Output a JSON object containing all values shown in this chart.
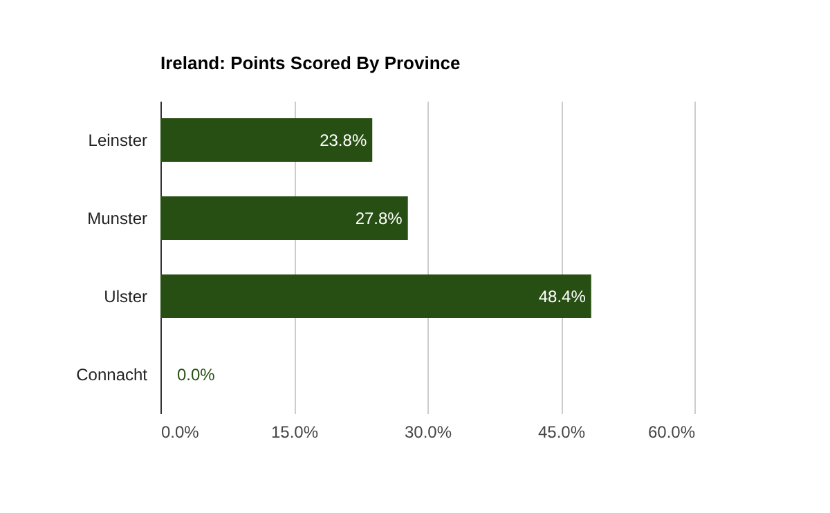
{
  "chart_data": {
    "type": "bar",
    "orientation": "horizontal",
    "title": "Ireland: Points Scored By Province",
    "categories": [
      "Leinster",
      "Munster",
      "Ulster",
      "Connacht"
    ],
    "values": [
      23.8,
      27.8,
      48.4,
      0.0
    ],
    "color": "#274e13",
    "value_labels": [
      "23.8%",
      "27.8%",
      "48.4%",
      "0.0%"
    ],
    "xlim": [
      0,
      60
    ],
    "xticks": [
      {
        "value": 0,
        "label": "0.0%"
      },
      {
        "value": 15,
        "label": "15.0%"
      },
      {
        "value": 30,
        "label": "30.0%"
      },
      {
        "value": 45,
        "label": "45.0%"
      },
      {
        "value": 60,
        "label": "60.0%"
      }
    ],
    "grid": "x"
  }
}
